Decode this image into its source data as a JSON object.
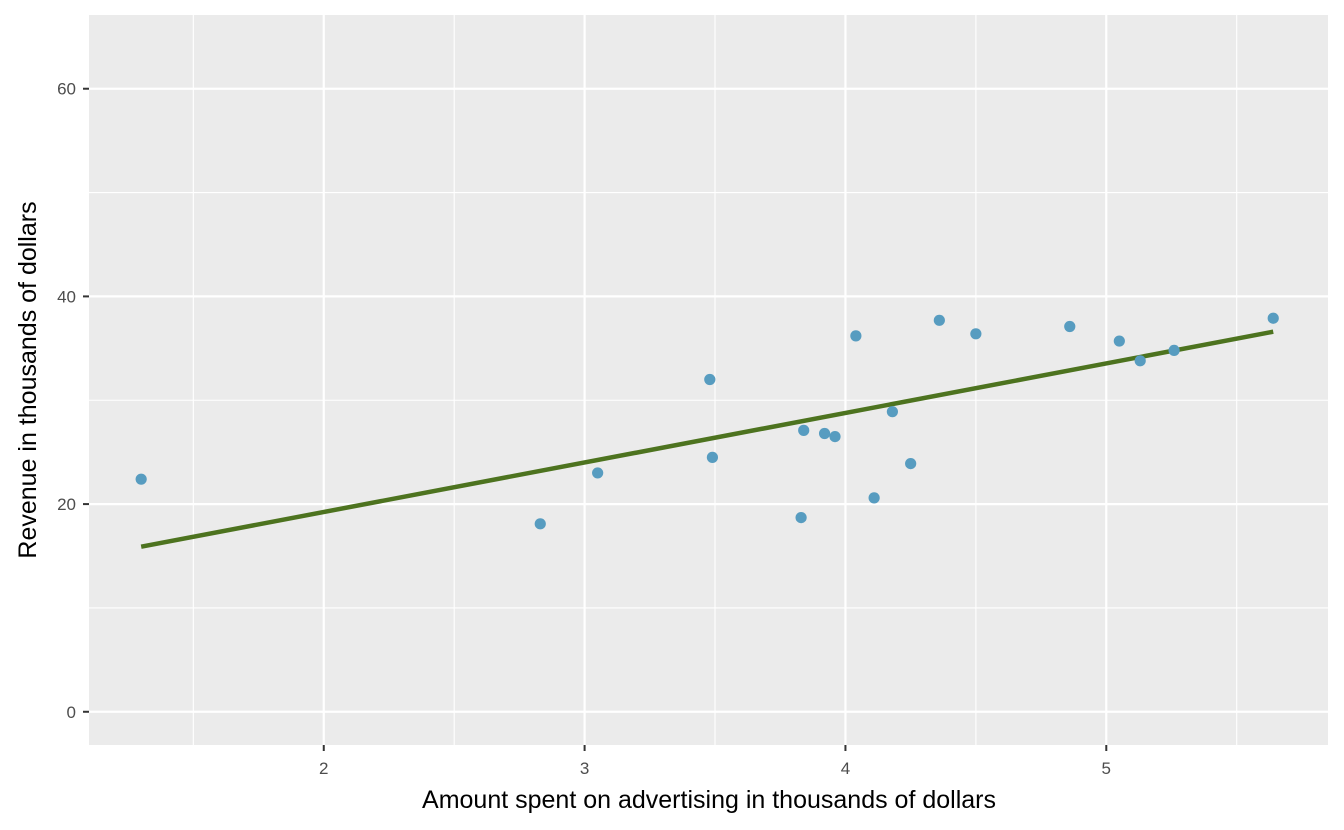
{
  "chart_data": {
    "type": "scatter",
    "title": "",
    "xlabel": "Amount spent on advertising in thousands of dollars",
    "ylabel": "Revenue in thousands of dollars",
    "xlim": [
      1.1,
      5.85
    ],
    "ylim": [
      -3.2,
      67.1
    ],
    "x_ticks": [
      2,
      3,
      4,
      5
    ],
    "y_ticks": [
      0,
      20,
      40,
      60
    ],
    "x_tick_labels": [
      "2",
      "3",
      "4",
      "5"
    ],
    "y_tick_labels": [
      "0",
      "20",
      "40",
      "60"
    ],
    "x_minor_ticks": [
      1.5,
      2.5,
      3.5,
      4.5,
      5.5
    ],
    "y_minor_ticks": [
      10,
      30,
      50
    ],
    "grid": true,
    "legend": "none",
    "panel_background": "#ebebeb",
    "grid_color": "#ffffff",
    "point_color": "#579cc0",
    "line_color": "#4d731f",
    "points": [
      {
        "x": 1.3,
        "y": 22.4
      },
      {
        "x": 2.83,
        "y": 18.1
      },
      {
        "x": 3.05,
        "y": 23.0
      },
      {
        "x": 3.48,
        "y": 32.0
      },
      {
        "x": 3.49,
        "y": 24.5
      },
      {
        "x": 3.83,
        "y": 18.7
      },
      {
        "x": 3.84,
        "y": 27.1
      },
      {
        "x": 3.92,
        "y": 26.8
      },
      {
        "x": 3.96,
        "y": 26.5
      },
      {
        "x": 4.04,
        "y": 36.2
      },
      {
        "x": 4.11,
        "y": 20.6
      },
      {
        "x": 4.18,
        "y": 28.9
      },
      {
        "x": 4.25,
        "y": 23.9
      },
      {
        "x": 4.36,
        "y": 37.7
      },
      {
        "x": 4.5,
        "y": 36.4
      },
      {
        "x": 4.86,
        "y": 37.1
      },
      {
        "x": 5.05,
        "y": 35.7
      },
      {
        "x": 5.13,
        "y": 33.8
      },
      {
        "x": 5.26,
        "y": 34.8
      },
      {
        "x": 5.64,
        "y": 37.9
      }
    ],
    "fit_line": {
      "type": "linear",
      "x": [
        1.3,
        5.64
      ],
      "y": [
        15.9,
        36.6
      ]
    }
  }
}
